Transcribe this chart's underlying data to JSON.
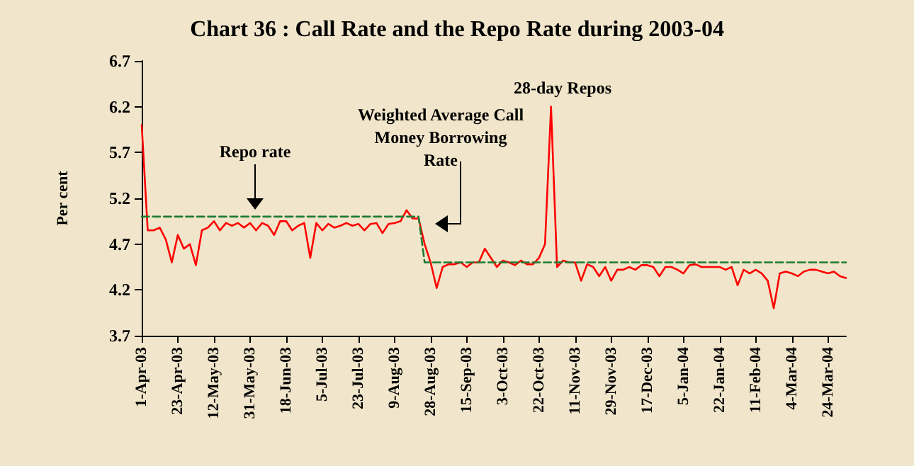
{
  "chart_data": {
    "type": "line",
    "title": "Chart 36 : Call Rate and the Repo Rate during 2003-04",
    "ylabel": "Per cent",
    "categories": [
      "1-Apr-03",
      null,
      null,
      null,
      null,
      null,
      "23-Apr-03",
      null,
      null,
      null,
      null,
      null,
      "12-May-03",
      null,
      null,
      null,
      null,
      null,
      "31-May-03",
      null,
      null,
      null,
      null,
      null,
      "18-Jun-03",
      null,
      null,
      null,
      null,
      null,
      "5-Jul-03",
      null,
      null,
      null,
      null,
      null,
      "23-Jul-03",
      null,
      null,
      null,
      null,
      null,
      "9-Aug-03",
      null,
      null,
      null,
      null,
      null,
      "28-Aug-03",
      null,
      null,
      null,
      null,
      null,
      "15-Sep-03",
      null,
      null,
      null,
      null,
      null,
      "3-Oct-03",
      null,
      null,
      null,
      null,
      null,
      "22-Oct-03",
      null,
      null,
      null,
      null,
      null,
      "11-Nov-03",
      null,
      null,
      null,
      null,
      null,
      "29-Nov-03",
      null,
      null,
      null,
      null,
      null,
      "17-Dec-03",
      null,
      null,
      null,
      null,
      null,
      "5-Jan-04",
      null,
      null,
      null,
      null,
      null,
      "22-Jan-04",
      null,
      null,
      null,
      null,
      null,
      "11-Feb-04",
      null,
      null,
      null,
      null,
      null,
      "4-Mar-04",
      null,
      null,
      null,
      null,
      null,
      "24-Mar-04",
      null,
      null,
      null
    ],
    "series": [
      {
        "color": "#ff0000",
        "line_style": "solid",
        "values": [
          6.0,
          4.85,
          4.85,
          4.88,
          4.75,
          4.5,
          4.8,
          4.65,
          4.7,
          4.47,
          4.85,
          4.88,
          4.95,
          4.85,
          4.93,
          4.9,
          4.93,
          4.88,
          4.93,
          4.85,
          4.93,
          4.9,
          4.8,
          4.95,
          4.95,
          4.85,
          4.9,
          4.93,
          4.55,
          4.93,
          4.85,
          4.92,
          4.88,
          4.9,
          4.93,
          4.9,
          4.92,
          4.85,
          4.92,
          4.93,
          4.82,
          4.92,
          4.93,
          4.95,
          5.07,
          4.98,
          4.98,
          4.7,
          4.5,
          4.22,
          4.45,
          4.48,
          4.48,
          4.5,
          4.45,
          4.5,
          4.5,
          4.65,
          4.55,
          4.45,
          4.52,
          4.5,
          4.47,
          4.52,
          4.48,
          4.48,
          4.55,
          4.7,
          6.2,
          4.45,
          4.52,
          4.5,
          4.5,
          4.3,
          4.48,
          4.45,
          4.35,
          4.45,
          4.3,
          4.42,
          4.42,
          4.45,
          4.42,
          4.47,
          4.47,
          4.45,
          4.35,
          4.45,
          4.45,
          4.42,
          4.38,
          4.47,
          4.48,
          4.45,
          4.45,
          4.45,
          4.45,
          4.42,
          4.45,
          4.25,
          4.42,
          4.38,
          4.42,
          4.38,
          4.3,
          4.0,
          4.38,
          4.4,
          4.38,
          4.35,
          4.4,
          4.42,
          4.42,
          4.4,
          4.38,
          4.4,
          4.35,
          4.33
        ]
      },
      {
        "color": "#1e7b34",
        "line_style": "dashed",
        "values": [
          5.0,
          5.0,
          5.0,
          5.0,
          5.0,
          5.0,
          5.0,
          5.0,
          5.0,
          5.0,
          5.0,
          5.0,
          5.0,
          5.0,
          5.0,
          5.0,
          5.0,
          5.0,
          5.0,
          5.0,
          5.0,
          5.0,
          5.0,
          5.0,
          5.0,
          5.0,
          5.0,
          5.0,
          5.0,
          5.0,
          5.0,
          5.0,
          5.0,
          5.0,
          5.0,
          5.0,
          5.0,
          5.0,
          5.0,
          5.0,
          5.0,
          5.0,
          5.0,
          5.0,
          5.0,
          5.0,
          5.0,
          4.5,
          4.5,
          4.5,
          4.5,
          4.5,
          4.5,
          4.5,
          4.5,
          4.5,
          4.5,
          4.5,
          4.5,
          4.5,
          4.5,
          4.5,
          4.5,
          4.5,
          4.5,
          4.5,
          4.5,
          4.5,
          4.5,
          4.5,
          4.5,
          4.5,
          4.5,
          4.5,
          4.5,
          4.5,
          4.5,
          4.5,
          4.5,
          4.5,
          4.5,
          4.5,
          4.5,
          4.5,
          4.5,
          4.5,
          4.5,
          4.5,
          4.5,
          4.5,
          4.5,
          4.5,
          4.5,
          4.5,
          4.5,
          4.5,
          4.5,
          4.5,
          4.5,
          4.5,
          4.5,
          4.5,
          4.5,
          4.5,
          4.5,
          4.5,
          4.5,
          4.5,
          4.5,
          4.5,
          4.5,
          4.5,
          4.5,
          4.5,
          4.5,
          4.5,
          4.5,
          4.5
        ]
      }
    ],
    "ylim": [
      3.7,
      6.7
    ],
    "yticks": [
      3.7,
      4.2,
      4.7,
      5.2,
      5.7,
      6.2,
      6.7
    ],
    "grid": false,
    "marker": "none",
    "annotations": [
      "Repo rate",
      "Weighted Average Call Money Borrowing Rate",
      "28-day Repos"
    ]
  }
}
